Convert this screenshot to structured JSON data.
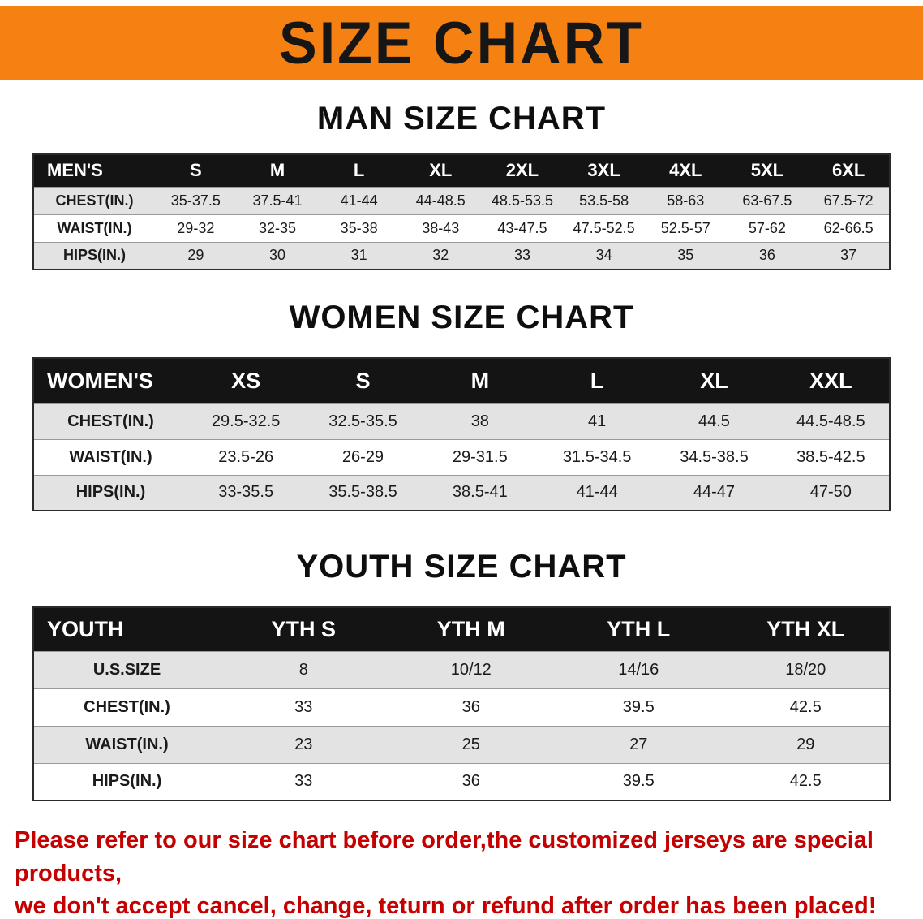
{
  "banner": {
    "title": "SIZE CHART",
    "bg_color": "#f58112"
  },
  "sections": [
    {
      "heading": "MAN SIZE CHART",
      "table": {
        "header": [
          "MEN'S",
          "S",
          "M",
          "L",
          "XL",
          "2XL",
          "3XL",
          "4XL",
          "5XL",
          "6XL"
        ],
        "rows": [
          [
            "CHEST(IN.)",
            "35-37.5",
            "37.5-41",
            "41-44",
            "44-48.5",
            "48.5-53.5",
            "53.5-58",
            "58-63",
            "63-67.5",
            "67.5-72"
          ],
          [
            "WAIST(IN.)",
            "29-32",
            "32-35",
            "35-38",
            "38-43",
            "43-47.5",
            "47.5-52.5",
            "52.5-57",
            "57-62",
            "62-66.5"
          ],
          [
            "HIPS(IN.)",
            "29",
            "30",
            "31",
            "32",
            "33",
            "34",
            "35",
            "36",
            "37"
          ]
        ]
      }
    },
    {
      "heading": "WOMEN SIZE CHART",
      "table": {
        "header": [
          "WOMEN'S",
          "XS",
          "S",
          "M",
          "L",
          "XL",
          "XXL"
        ],
        "rows": [
          [
            "CHEST(IN.)",
            "29.5-32.5",
            "32.5-35.5",
            "38",
            "41",
            "44.5",
            "44.5-48.5"
          ],
          [
            "WAIST(IN.)",
            "23.5-26",
            "26-29",
            "29-31.5",
            "31.5-34.5",
            "34.5-38.5",
            "38.5-42.5"
          ],
          [
            "HIPS(IN.)",
            "33-35.5",
            "35.5-38.5",
            "38.5-41",
            "41-44",
            "44-47",
            "47-50"
          ]
        ]
      }
    },
    {
      "heading": "YOUTH SIZE CHART",
      "table": {
        "header": [
          "YOUTH",
          "YTH S",
          "YTH M",
          "YTH L",
          "YTH XL"
        ],
        "rows": [
          [
            "U.S.SIZE",
            "8",
            "10/12",
            "14/16",
            "18/20"
          ],
          [
            "CHEST(IN.)",
            "33",
            "36",
            "39.5",
            "42.5"
          ],
          [
            "WAIST(IN.)",
            "23",
            "25",
            "27",
            "29"
          ],
          [
            "HIPS(IN.)",
            "33",
            "36",
            "39.5",
            "42.5"
          ]
        ]
      }
    }
  ],
  "footer": {
    "line1": "Please refer to our size chart before order,the customized jerseys are special products,",
    "line2": "we don't accept cancel, change, teturn or refund after order has been placed!",
    "color": "#c40000"
  }
}
